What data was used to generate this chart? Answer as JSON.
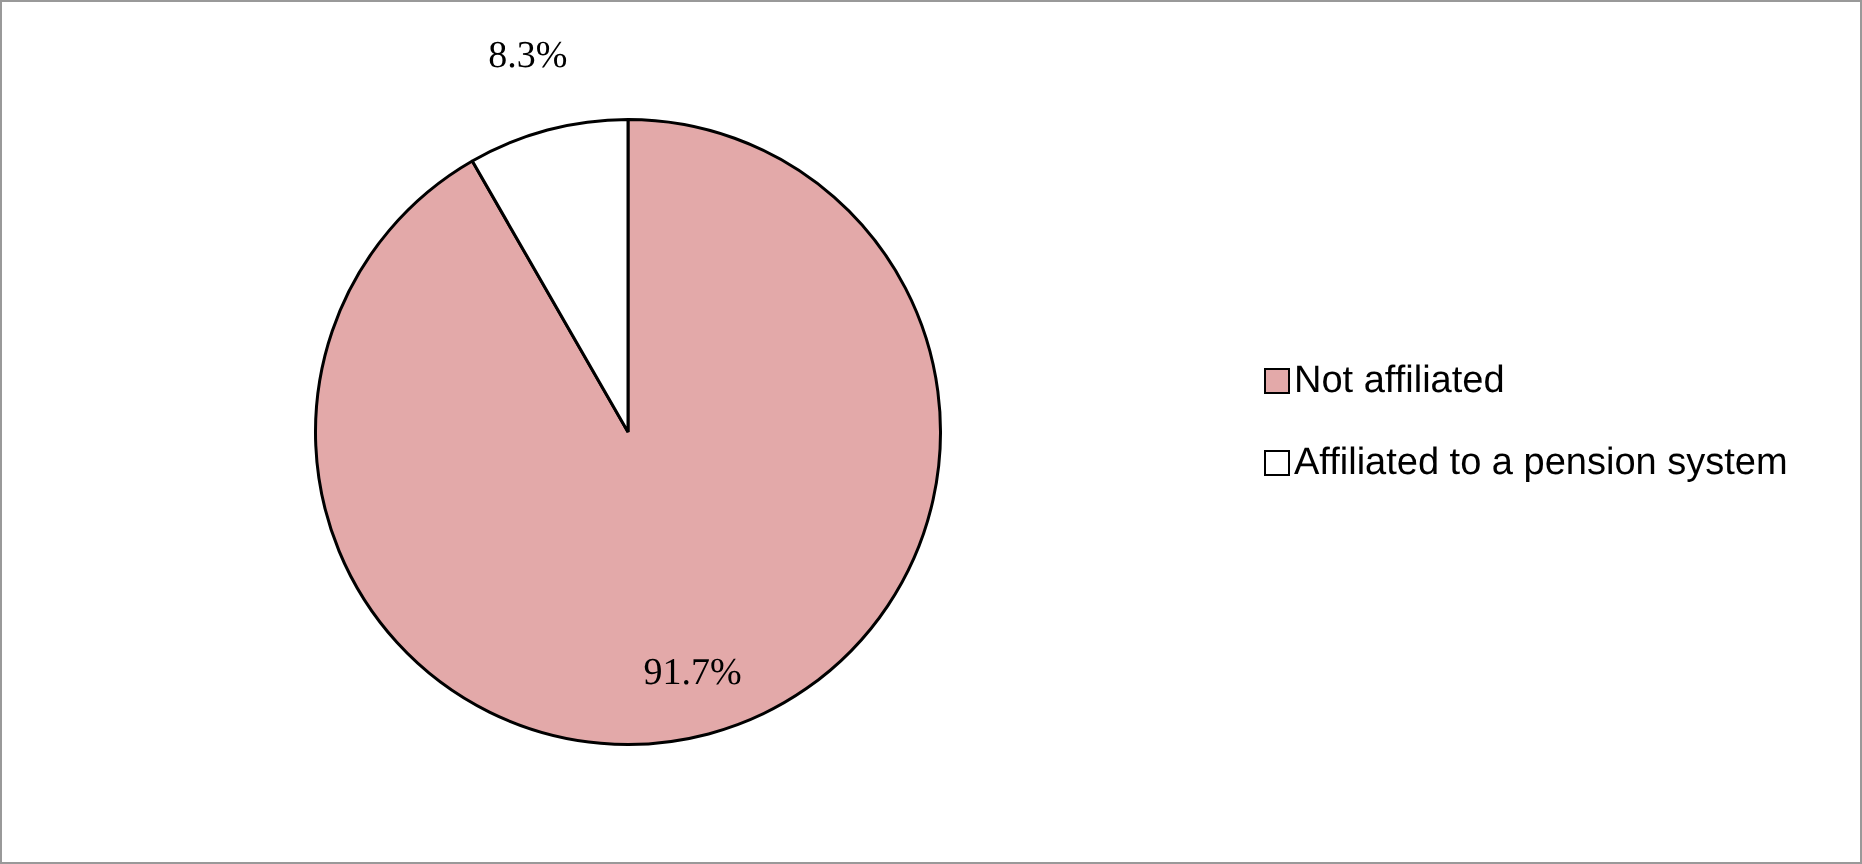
{
  "chart_data": {
    "type": "pie",
    "categories": [
      "Not affiliated",
      "Affiliated to a pension system"
    ],
    "values": [
      91.7,
      8.3
    ],
    "colors": [
      "#e3a9a9",
      "#ffffff"
    ],
    "value_labels": [
      "91.7%",
      "8.3%"
    ],
    "legend": "right"
  }
}
